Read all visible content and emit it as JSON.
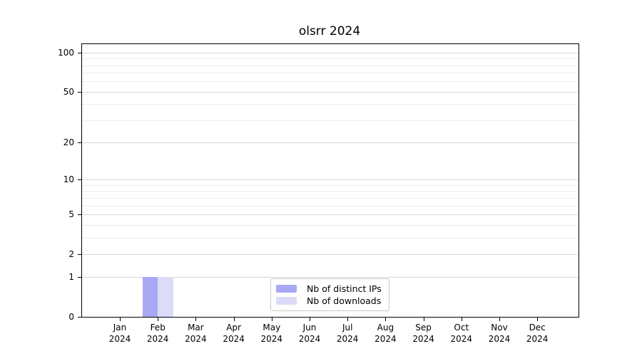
{
  "chart_data": {
    "type": "bar",
    "title": "olsrr 2024",
    "year": "2024",
    "categories": [
      "Jan",
      "Feb",
      "Mar",
      "Apr",
      "May",
      "Jun",
      "Jul",
      "Aug",
      "Sep",
      "Oct",
      "Nov",
      "Dec"
    ],
    "series": [
      {
        "name": "Nb of distinct IPs",
        "color": "#a8a8f5",
        "values": [
          0,
          1,
          0,
          0,
          0,
          0,
          0,
          0,
          0,
          0,
          0,
          0
        ]
      },
      {
        "name": "Nb of downloads",
        "color": "#dcdcf8",
        "values": [
          0,
          1,
          0,
          0,
          0,
          0,
          0,
          0,
          0,
          0,
          0,
          0
        ]
      }
    ],
    "xlabel": "",
    "ylabel": "",
    "y_scale": "log1p",
    "ylim": [
      0,
      116
    ],
    "y_major_ticks": [
      0,
      1,
      2,
      5,
      10,
      20,
      50,
      100
    ],
    "y_tick_labels": [
      "0",
      "1",
      "2",
      "5",
      "10",
      "20",
      "50",
      "100"
    ],
    "y_minor_gridlines": [
      3,
      4,
      6,
      7,
      8,
      9,
      30,
      40,
      60,
      70,
      80,
      90
    ],
    "grid": true,
    "legend_position": "lower center"
  }
}
